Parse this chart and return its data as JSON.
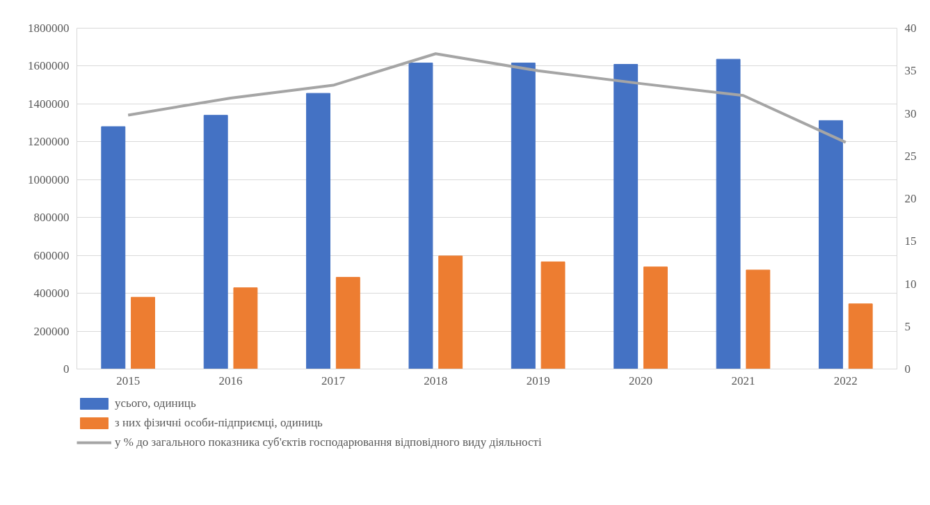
{
  "chart_data": {
    "type": "bar",
    "categories": [
      "2015",
      "2016",
      "2017",
      "2018",
      "2019",
      "2020",
      "2021",
      "2022"
    ],
    "ylim": [
      0,
      1800000
    ],
    "yticks": [
      0,
      200000,
      400000,
      600000,
      800000,
      1000000,
      1200000,
      1400000,
      1600000,
      1800000
    ],
    "y2lim": [
      0,
      40
    ],
    "y2ticks": [
      0,
      5,
      10,
      15,
      20,
      25,
      30,
      35,
      40
    ],
    "grid": "y",
    "legend": "bottom",
    "series": [
      {
        "name": "усього, одиниць",
        "color": "#4472c4",
        "values": [
          1280000,
          1340000,
          1456000,
          1616000,
          1616000,
          1609000,
          1636000,
          1312000
        ]
      },
      {
        "name": "з них фізичні особи-підприємці, одиниць",
        "color": "#ed7d31",
        "values": [
          379000,
          429000,
          484000,
          597000,
          566000,
          539000,
          523000,
          344000
        ]
      },
      {
        "name": "у % до загального показника суб'єктів господарювання відповідного виду діяльності",
        "color": "#a5a5a5",
        "type": "line",
        "axis": "y2",
        "values": [
          29.8,
          31.8,
          33.3,
          37.0,
          35.0,
          33.5,
          32.1,
          26.6
        ]
      }
    ]
  }
}
